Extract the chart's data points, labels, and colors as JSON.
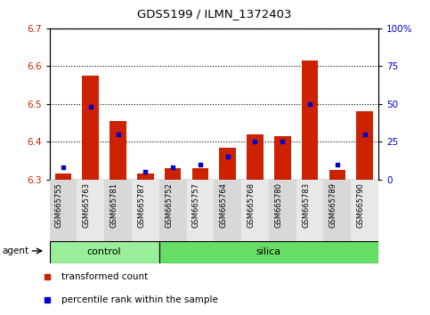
{
  "title": "GDS5199 / ILMN_1372403",
  "samples": [
    "GSM665755",
    "GSM665763",
    "GSM665781",
    "GSM665787",
    "GSM665752",
    "GSM665757",
    "GSM665764",
    "GSM665768",
    "GSM665780",
    "GSM665783",
    "GSM665789",
    "GSM665790"
  ],
  "groups": [
    "control",
    "control",
    "control",
    "control",
    "silica",
    "silica",
    "silica",
    "silica",
    "silica",
    "silica",
    "silica",
    "silica"
  ],
  "red_values": [
    6.315,
    6.575,
    6.455,
    6.315,
    6.33,
    6.33,
    6.385,
    6.42,
    6.415,
    6.615,
    6.325,
    6.48
  ],
  "blue_values_pct": [
    8,
    48,
    30,
    5,
    8,
    10,
    15,
    25,
    25,
    50,
    10,
    30
  ],
  "ylim_left": [
    6.3,
    6.7
  ],
  "ylim_right": [
    0,
    100
  ],
  "yticks_left": [
    6.3,
    6.4,
    6.5,
    6.6,
    6.7
  ],
  "yticks_right": [
    0,
    25,
    50,
    75,
    100
  ],
  "ytick_labels_right": [
    "0",
    "25",
    "50",
    "75",
    "100%"
  ],
  "baseline": 6.3,
  "bar_width": 0.6,
  "red_color": "#cc2200",
  "blue_color": "#0000cc",
  "control_color": "#99ee99",
  "silica_color": "#66dd66",
  "group_labels": [
    "control",
    "silica"
  ],
  "agent_label": "agent",
  "legend_red": "transformed count",
  "legend_blue": "percentile rank within the sample",
  "left_tick_color": "#cc2200",
  "right_tick_color": "#0000cc",
  "n_control": 4,
  "n_silica": 8
}
